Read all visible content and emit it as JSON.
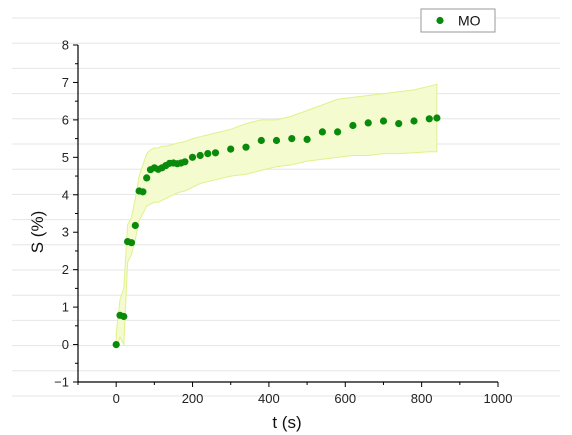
{
  "chart_data": {
    "type": "scatter",
    "xlabel": "t (s)",
    "ylabel": "S (%)",
    "xlim": [
      -100,
      1000
    ],
    "ylim": [
      -1,
      8
    ],
    "x_ticks": [
      0,
      200,
      400,
      600,
      800,
      1000
    ],
    "y_ticks": [
      -1,
      0,
      1,
      2,
      3,
      4,
      5,
      6,
      7,
      8
    ],
    "grid": true,
    "legend_position": "top-right",
    "colors": {
      "points": "#0a8a0a",
      "band_fill": "#f4fbcf",
      "band_edge": "#e2f08c",
      "grid": "#e6e6e6"
    },
    "series": [
      {
        "name": "MO",
        "x": [
          0,
          10,
          20,
          30,
          40,
          50,
          60,
          70,
          80,
          90,
          100,
          110,
          120,
          130,
          140,
          150,
          160,
          170,
          180,
          200,
          220,
          240,
          260,
          300,
          340,
          380,
          420,
          460,
          500,
          540,
          580,
          620,
          660,
          700,
          740,
          780,
          820,
          840
        ],
        "y": [
          0.0,
          0.78,
          0.75,
          2.75,
          2.72,
          3.18,
          4.1,
          4.08,
          4.45,
          4.67,
          4.72,
          4.68,
          4.72,
          4.78,
          4.84,
          4.85,
          4.83,
          4.85,
          4.88,
          5.0,
          5.05,
          5.1,
          5.12,
          5.22,
          5.27,
          5.45,
          5.45,
          5.5,
          5.48,
          5.68,
          5.68,
          5.85,
          5.92,
          5.97,
          5.9,
          5.97,
          6.03,
          6.05
        ],
        "band_upper": [
          0.3,
          1.2,
          1.5,
          3.2,
          3.4,
          3.9,
          4.5,
          4.8,
          5.1,
          5.2,
          5.25,
          5.25,
          5.3,
          5.3,
          5.32,
          5.35,
          5.38,
          5.4,
          5.42,
          5.5,
          5.55,
          5.6,
          5.65,
          5.75,
          5.9,
          6.0,
          6.0,
          6.1,
          6.25,
          6.4,
          6.55,
          6.6,
          6.65,
          6.7,
          6.75,
          6.8,
          6.9,
          6.95
        ],
        "band_lower": [
          -0.1,
          0.2,
          0.0,
          2.2,
          2.4,
          2.8,
          3.3,
          3.5,
          3.7,
          3.75,
          3.8,
          3.8,
          3.85,
          3.9,
          3.95,
          4.0,
          4.05,
          4.08,
          4.1,
          4.2,
          4.3,
          4.35,
          4.4,
          4.5,
          4.55,
          4.65,
          4.75,
          4.8,
          4.9,
          4.95,
          5.0,
          5.05,
          5.05,
          5.1,
          5.1,
          5.12,
          5.15,
          5.15
        ]
      }
    ]
  }
}
